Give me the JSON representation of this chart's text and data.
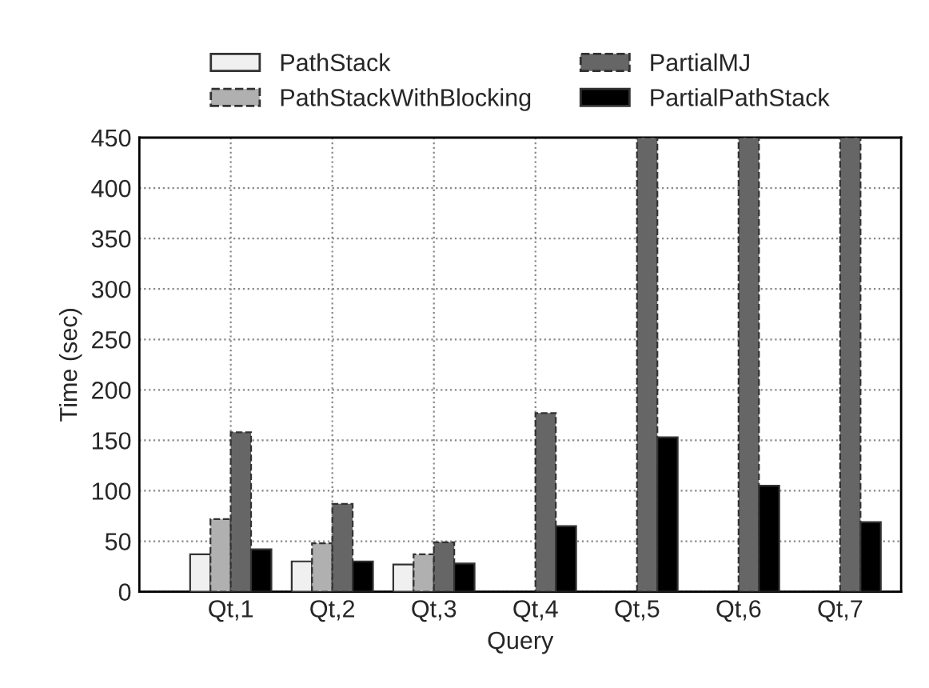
{
  "chart_data": {
    "type": "bar",
    "xlabel": "Query",
    "ylabel": "Time (sec)",
    "categories": [
      "Qt,1",
      "Qt,2",
      "Qt,3",
      "Qt,4",
      "Qt,5",
      "Qt,6",
      "Qt,7"
    ],
    "series": [
      {
        "name": "PathStack",
        "color": "#f0f0f0",
        "values": [
          37,
          30,
          27,
          0,
          0,
          0,
          0
        ]
      },
      {
        "name": "PathStackWithBlocking",
        "color": "#b0b0b0",
        "values": [
          72,
          48,
          37,
          0,
          0,
          0,
          0
        ]
      },
      {
        "name": "PartialMJ",
        "color": "#666666",
        "values": [
          158,
          87,
          49,
          177,
          450,
          450,
          450
        ]
      },
      {
        "name": "PartialPathStack",
        "color": "#000000",
        "values": [
          42,
          30,
          28,
          65,
          153,
          105,
          69
        ]
      }
    ],
    "ylim": [
      0,
      450
    ],
    "yticks": [
      0,
      50,
      100,
      150,
      200,
      250,
      300,
      350,
      400,
      450
    ],
    "grid": true,
    "legend": "top"
  }
}
